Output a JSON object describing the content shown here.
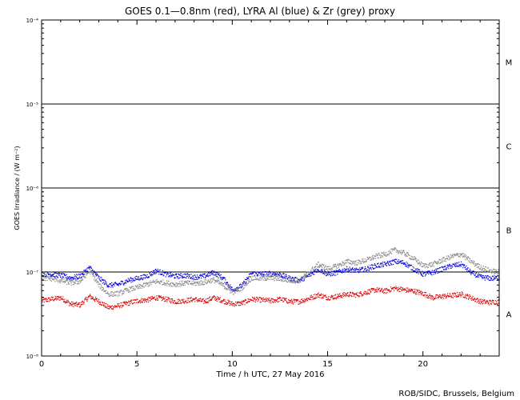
{
  "chart_data": {
    "type": "scatter",
    "title": "GOES 0.1—0.8nm (red), LYRA Al (blue) & Zr (grey) proxy",
    "xlabel": "Time / h UTC, 27 May 2016",
    "ylabel": "GOES Irradiance / (W m⁻²)",
    "xlim": [
      0,
      24
    ],
    "ylim": [
      1e-08,
      0.0001
    ],
    "yscale": "log",
    "x_ticks": [
      "0",
      "5",
      "10",
      "15",
      "20"
    ],
    "y_ticks": [
      "10⁻⁸",
      "10⁻⁷",
      "10⁻⁶",
      "10⁻⁵",
      "10⁻⁴"
    ],
    "flare_classes": [
      {
        "label": "A",
        "threshold": 1e-08
      },
      {
        "label": "B",
        "threshold": 1e-07
      },
      {
        "label": "C",
        "threshold": 1e-06
      },
      {
        "label": "M",
        "threshold": 1e-05
      }
    ],
    "series": [
      {
        "name": "GOES 0.1—0.8nm",
        "color": "#dd0000",
        "points": [
          [
            0,
            4.6e-08
          ],
          [
            0.5,
            4.8e-08
          ],
          [
            1,
            5e-08
          ],
          [
            1.5,
            4.2e-08
          ],
          [
            2,
            4.1e-08
          ],
          [
            2.5,
            5.2e-08
          ],
          [
            3,
            4.5e-08
          ],
          [
            3.5,
            3.8e-08
          ],
          [
            4,
            4e-08
          ],
          [
            4.5,
            4.3e-08
          ],
          [
            5,
            4.6e-08
          ],
          [
            5.5,
            4.7e-08
          ],
          [
            6,
            5e-08
          ],
          [
            6.5,
            4.8e-08
          ],
          [
            7,
            4.5e-08
          ],
          [
            7.5,
            4.6e-08
          ],
          [
            8,
            4.8e-08
          ],
          [
            8.5,
            4.5e-08
          ],
          [
            9,
            5e-08
          ],
          [
            9.5,
            4.6e-08
          ],
          [
            10,
            4.2e-08
          ],
          [
            10.5,
            4.3e-08
          ],
          [
            11,
            4.8e-08
          ],
          [
            11.5,
            4.7e-08
          ],
          [
            12,
            4.6e-08
          ],
          [
            12.5,
            4.8e-08
          ],
          [
            13,
            4.5e-08
          ],
          [
            13.5,
            4.5e-08
          ],
          [
            14,
            4.9e-08
          ],
          [
            14.5,
            5.4e-08
          ],
          [
            15,
            5e-08
          ],
          [
            15.5,
            5.2e-08
          ],
          [
            16,
            5.5e-08
          ],
          [
            16.5,
            5.4e-08
          ],
          [
            17,
            5.8e-08
          ],
          [
            17.5,
            6.2e-08
          ],
          [
            18,
            6e-08
          ],
          [
            18.5,
            6.5e-08
          ],
          [
            19,
            6.2e-08
          ],
          [
            19.5,
            6e-08
          ],
          [
            20,
            5.6e-08
          ],
          [
            20.5,
            5e-08
          ],
          [
            21,
            5.2e-08
          ],
          [
            21.5,
            5.3e-08
          ],
          [
            22,
            5.5e-08
          ],
          [
            22.5,
            5e-08
          ],
          [
            23,
            4.5e-08
          ],
          [
            23.5,
            4.4e-08
          ],
          [
            24,
            4.5e-08
          ]
        ]
      },
      {
        "name": "LYRA Al proxy",
        "color": "#0000dd",
        "points": [
          [
            0,
            9.6e-08
          ],
          [
            0.5,
            9.5e-08
          ],
          [
            1,
            9.2e-08
          ],
          [
            1.5,
            8.6e-08
          ],
          [
            2,
            9e-08
          ],
          [
            2.5,
            1.15e-07
          ],
          [
            3,
            8.5e-08
          ],
          [
            3.5,
            7e-08
          ],
          [
            4,
            7.2e-08
          ],
          [
            4.5,
            8e-08
          ],
          [
            5,
            8.5e-08
          ],
          [
            5.5,
            9e-08
          ],
          [
            6,
            1.05e-07
          ],
          [
            6.5,
            9.5e-08
          ],
          [
            7,
            9e-08
          ],
          [
            7.5,
            9.2e-08
          ],
          [
            8,
            8.8e-08
          ],
          [
            8.5,
            9e-08
          ],
          [
            9,
            1e-07
          ],
          [
            9.5,
            8.5e-08
          ],
          [
            10,
            6.2e-08
          ],
          [
            10.5,
            7e-08
          ],
          [
            11,
            9.8e-08
          ],
          [
            11.5,
            9.6e-08
          ],
          [
            12,
            9.7e-08
          ],
          [
            12.5,
            9.4e-08
          ],
          [
            13,
            8.5e-08
          ],
          [
            13.5,
            8e-08
          ],
          [
            14,
            9.2e-08
          ],
          [
            14.5,
            1.1e-07
          ],
          [
            15,
            9.5e-08
          ],
          [
            15.5,
            1e-07
          ],
          [
            16,
            1.1e-07
          ],
          [
            16.5,
            1.05e-07
          ],
          [
            17,
            1.1e-07
          ],
          [
            17.5,
            1.2e-07
          ],
          [
            18,
            1.25e-07
          ],
          [
            18.5,
            1.35e-07
          ],
          [
            19,
            1.3e-07
          ],
          [
            19.5,
            1.1e-07
          ],
          [
            20,
            9.5e-08
          ],
          [
            20.5,
            1e-07
          ],
          [
            21,
            1.1e-07
          ],
          [
            21.5,
            1.2e-07
          ],
          [
            22,
            1.25e-07
          ],
          [
            22.5,
            1e-07
          ],
          [
            23,
            8.8e-08
          ],
          [
            23.5,
            8.5e-08
          ],
          [
            24,
            8.6e-08
          ]
        ]
      },
      {
        "name": "LYRA Zr proxy",
        "color": "#888888",
        "points": [
          [
            0,
            8.5e-08
          ],
          [
            0.5,
            8.4e-08
          ],
          [
            1,
            8e-08
          ],
          [
            1.5,
            7.5e-08
          ],
          [
            2,
            7.8e-08
          ],
          [
            2.5,
            1.05e-07
          ],
          [
            3,
            7e-08
          ],
          [
            3.5,
            5.5e-08
          ],
          [
            4,
            5.6e-08
          ],
          [
            4.5,
            6.2e-08
          ],
          [
            5,
            6.6e-08
          ],
          [
            5.5,
            7.2e-08
          ],
          [
            6,
            7.8e-08
          ],
          [
            6.5,
            7.5e-08
          ],
          [
            7,
            7.2e-08
          ],
          [
            7.5,
            7.5e-08
          ],
          [
            8,
            7.4e-08
          ],
          [
            8.5,
            7.6e-08
          ],
          [
            9,
            8.2e-08
          ],
          [
            9.5,
            7e-08
          ],
          [
            10,
            5.8e-08
          ],
          [
            10.5,
            6.6e-08
          ],
          [
            11,
            8.6e-08
          ],
          [
            11.5,
            8.5e-08
          ],
          [
            12,
            8.6e-08
          ],
          [
            12.5,
            8.4e-08
          ],
          [
            13,
            8e-08
          ],
          [
            13.5,
            8e-08
          ],
          [
            14,
            1e-07
          ],
          [
            14.5,
            1.25e-07
          ],
          [
            15,
            1.1e-07
          ],
          [
            15.5,
            1.2e-07
          ],
          [
            16,
            1.35e-07
          ],
          [
            16.5,
            1.3e-07
          ],
          [
            17,
            1.4e-07
          ],
          [
            17.5,
            1.55e-07
          ],
          [
            18,
            1.65e-07
          ],
          [
            18.5,
            1.85e-07
          ],
          [
            19,
            1.7e-07
          ],
          [
            19.5,
            1.45e-07
          ],
          [
            20,
            1.2e-07
          ],
          [
            20.5,
            1.25e-07
          ],
          [
            21,
            1.4e-07
          ],
          [
            21.5,
            1.55e-07
          ],
          [
            22,
            1.65e-07
          ],
          [
            22.5,
            1.35e-07
          ],
          [
            23,
            1.15e-07
          ],
          [
            23.5,
            1.05e-07
          ],
          [
            24,
            1e-07
          ]
        ]
      }
    ]
  },
  "footer": {
    "credit": "ROB/SIDC, Brussels, Belgium"
  }
}
